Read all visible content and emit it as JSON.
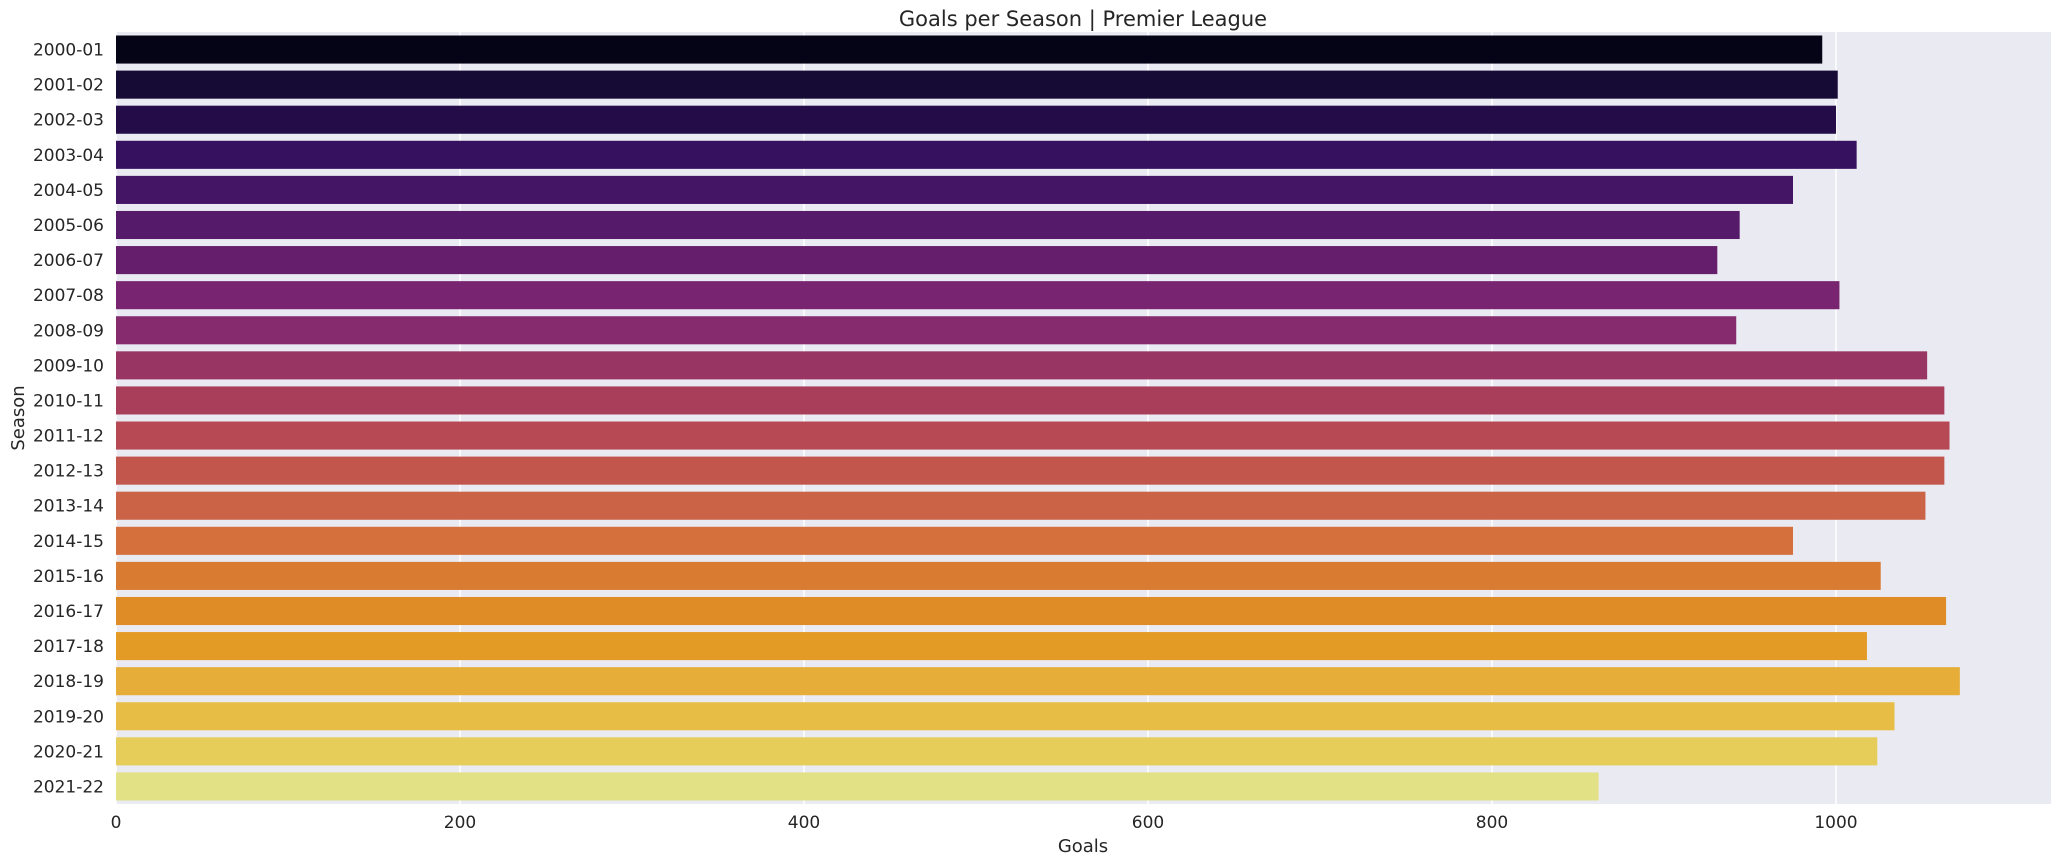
{
  "chart_data": {
    "type": "bar",
    "orientation": "horizontal",
    "title": "Goals per Season | Premier League",
    "xlabel": "Goals",
    "ylabel": "Season",
    "xlim": [
      0,
      1125
    ],
    "xticks": [
      0,
      200,
      400,
      600,
      800,
      1000
    ],
    "grid": true,
    "categories": [
      "2000-01",
      "2001-02",
      "2002-03",
      "2003-04",
      "2004-05",
      "2005-06",
      "2006-07",
      "2007-08",
      "2008-09",
      "2009-10",
      "2010-11",
      "2011-12",
      "2012-13",
      "2013-14",
      "2014-15",
      "2015-16",
      "2016-17",
      "2017-18",
      "2018-19",
      "2019-20",
      "2020-21",
      "2021-22"
    ],
    "values": [
      992,
      1001,
      1000,
      1012,
      975,
      944,
      931,
      1002,
      942,
      1053,
      1063,
      1066,
      1063,
      1052,
      975,
      1026,
      1064,
      1018,
      1072,
      1034,
      1024,
      862
    ],
    "colors": [
      "#050416",
      "#150b35",
      "#230c48",
      "#361160",
      "#441465",
      "#561a6a",
      "#651e6c",
      "#782470",
      "#852b6e",
      "#993563",
      "#a93e5b",
      "#b74954",
      "#c2564d",
      "#cb6347",
      "#d56f3b",
      "#da7b32",
      "#df8b26",
      "#e39b26",
      "#e6ae39",
      "#e8bd46",
      "#e6cc58",
      "#e3e185"
    ]
  }
}
